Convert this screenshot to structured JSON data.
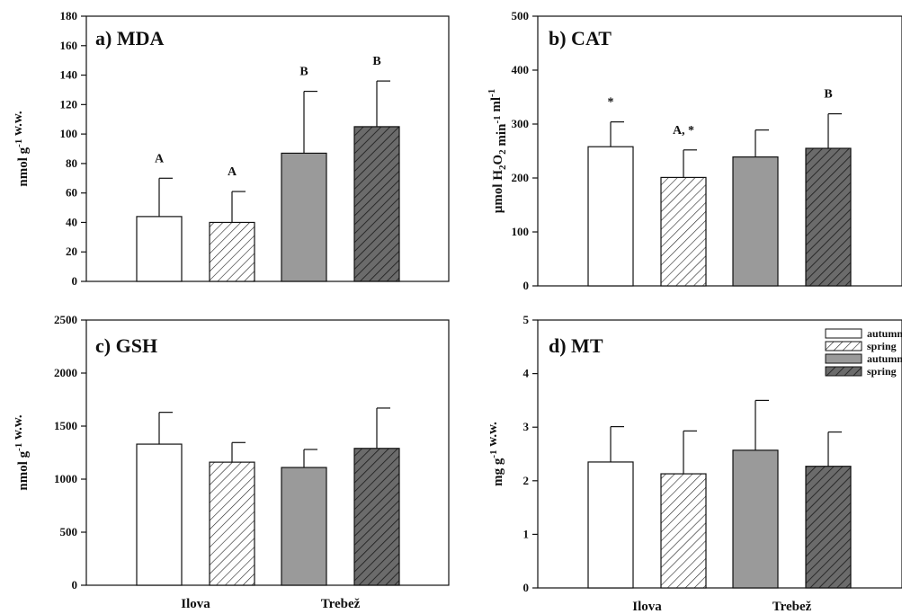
{
  "chart_data": [
    {
      "type": "bar",
      "title": "a) MDA",
      "ylabel": "nmol g-1 w.w.",
      "ylim": [
        0,
        180
      ],
      "yticks": [
        0,
        20,
        40,
        60,
        80,
        100,
        120,
        140,
        160,
        180
      ],
      "show_group_labels": false,
      "bars": [
        {
          "value": 44,
          "error": 26,
          "style": "white",
          "label": "A"
        },
        {
          "value": 40,
          "error": 21,
          "style": "hatch-light",
          "label": "A"
        },
        {
          "value": 87,
          "error": 42,
          "style": "gray",
          "label": "B"
        },
        {
          "value": 105,
          "error": 31,
          "style": "hatch-dark",
          "label": "B"
        }
      ]
    },
    {
      "type": "bar",
      "title": "b) CAT",
      "ylabel": "µmol H2O2 min-1 ml-1",
      "ylim": [
        0,
        500
      ],
      "yticks": [
        0,
        100,
        200,
        300,
        400,
        500
      ],
      "show_group_labels": false,
      "bars": [
        {
          "value": 258,
          "error": 46,
          "style": "white",
          "label": "*"
        },
        {
          "value": 201,
          "error": 51,
          "style": "hatch-light",
          "label": "A, *"
        },
        {
          "value": 239,
          "error": 50,
          "style": "gray",
          "label": ""
        },
        {
          "value": 255,
          "error": 64,
          "style": "hatch-dark",
          "label": "B"
        }
      ]
    },
    {
      "type": "bar",
      "title": "c) GSH",
      "ylabel": "nmol g-1 w.w.",
      "ylim": [
        0,
        2500
      ],
      "yticks": [
        0,
        500,
        1000,
        1500,
        2000,
        2500
      ],
      "show_group_labels": true,
      "bars": [
        {
          "value": 1330,
          "error": 300,
          "style": "white",
          "label": ""
        },
        {
          "value": 1160,
          "error": 185,
          "style": "hatch-light",
          "label": ""
        },
        {
          "value": 1110,
          "error": 170,
          "style": "gray",
          "label": ""
        },
        {
          "value": 1290,
          "error": 380,
          "style": "hatch-dark",
          "label": ""
        }
      ]
    },
    {
      "type": "bar",
      "title": "d) MT",
      "ylabel": "mg g-1 w.w.",
      "ylim": [
        0,
        5
      ],
      "yticks": [
        0,
        1,
        2,
        3,
        4,
        5
      ],
      "show_group_labels": true,
      "bars": [
        {
          "value": 2.35,
          "error": 0.66,
          "style": "white",
          "label": ""
        },
        {
          "value": 2.13,
          "error": 0.8,
          "style": "hatch-light",
          "label": ""
        },
        {
          "value": 2.57,
          "error": 0.93,
          "style": "gray",
          "label": ""
        },
        {
          "value": 2.27,
          "error": 0.64,
          "style": "hatch-dark",
          "label": ""
        }
      ]
    }
  ],
  "groups": [
    "Ilova",
    "Trebež"
  ],
  "legend": {
    "placement": "top-right of panel d",
    "entries": [
      {
        "label": "autumn",
        "style": "white"
      },
      {
        "label": "spring",
        "style": "hatch-light"
      },
      {
        "label": "autumn",
        "style": "gray"
      },
      {
        "label": "spring",
        "style": "hatch-dark"
      }
    ]
  },
  "colors": {
    "gray_fill": "#9a9a9a",
    "dark_hatch_fill": "#6b6b6b",
    "axis": "#111111"
  }
}
